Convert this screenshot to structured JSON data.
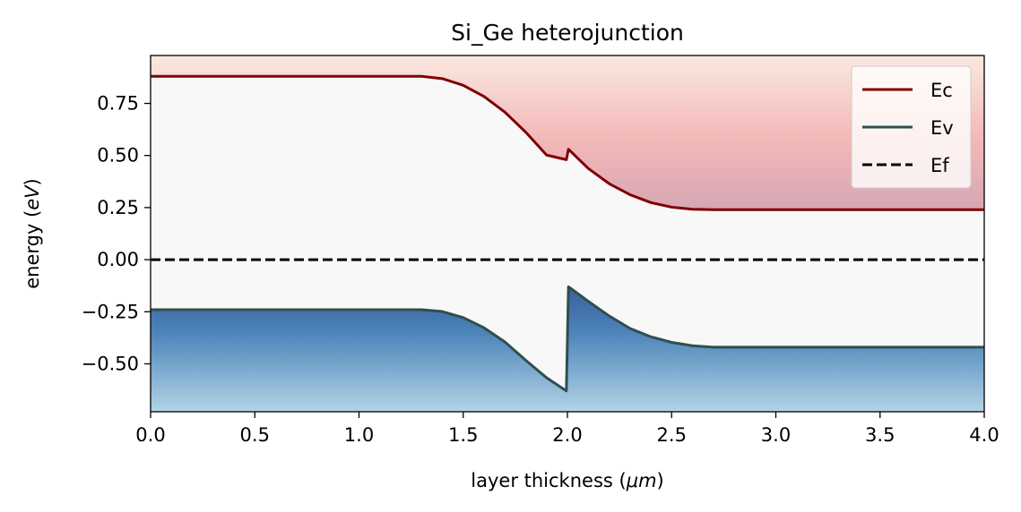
{
  "chart_data": {
    "type": "line",
    "title": "Si_Ge heterojunction",
    "xlabel_prefix": "layer thickness (",
    "xlabel_unit": "μm",
    "xlabel_suffix": ")",
    "ylabel_prefix": "energy (",
    "ylabel_unit": "eV",
    "ylabel_suffix": ")",
    "xlim": [
      0,
      4
    ],
    "ylim": [
      -0.73,
      0.98
    ],
    "xticks": [
      0.0,
      0.5,
      1.0,
      1.5,
      2.0,
      2.5,
      3.0,
      3.5,
      4.0
    ],
    "xtick_labels": [
      "0.0",
      "0.5",
      "1.0",
      "1.5",
      "2.0",
      "2.5",
      "3.0",
      "3.5",
      "4.0"
    ],
    "yticks": [
      0.75,
      0.5,
      0.25,
      0.0,
      -0.25,
      -0.5
    ],
    "ytick_labels": [
      "0.75",
      "0.50",
      "0.25",
      "0.00",
      "−0.25",
      "−0.50"
    ],
    "legend_position": "top-right",
    "plot_background": "#f8f8f8",
    "series": [
      {
        "name": "Ec",
        "color": "#800000",
        "style": "solid",
        "x": [
          0.0,
          1.3,
          1.4,
          1.5,
          1.6,
          1.7,
          1.8,
          1.9,
          1.995,
          2.005,
          2.1,
          2.2,
          2.3,
          2.4,
          2.5,
          2.6,
          2.7,
          4.0
        ],
        "y": [
          0.88,
          0.88,
          0.869,
          0.837,
          0.783,
          0.708,
          0.612,
          0.502,
          0.48,
          0.53,
          0.438,
          0.365,
          0.312,
          0.274,
          0.252,
          0.242,
          0.24,
          0.24
        ]
      },
      {
        "name": "Ev",
        "color": "#2f4f4f",
        "style": "solid",
        "x": [
          0.0,
          1.3,
          1.4,
          1.5,
          1.6,
          1.7,
          1.8,
          1.9,
          1.995,
          2.005,
          2.1,
          2.2,
          2.3,
          2.4,
          2.5,
          2.6,
          2.7,
          4.0
        ],
        "y": [
          -0.24,
          -0.24,
          -0.249,
          -0.278,
          -0.327,
          -0.395,
          -0.483,
          -0.567,
          -0.63,
          -0.13,
          -0.2,
          -0.27,
          -0.33,
          -0.37,
          -0.397,
          -0.413,
          -0.42,
          -0.42
        ]
      },
      {
        "name": "Ef",
        "color": "#000000",
        "style": "dashed",
        "x": [
          0.0,
          4.0
        ],
        "y": [
          0.0,
          0.0
        ]
      }
    ]
  }
}
